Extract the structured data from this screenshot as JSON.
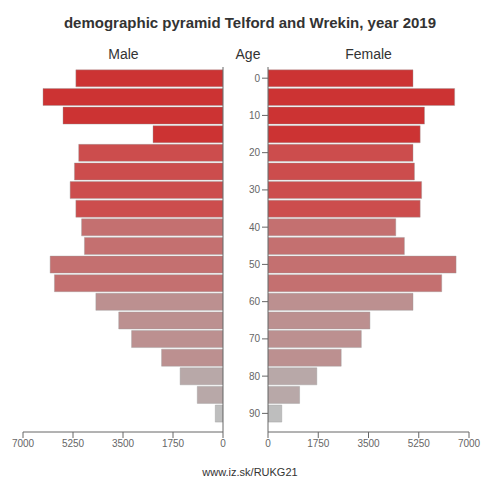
{
  "chart_data": {
    "type": "bar",
    "orientation": "horizontal",
    "title": "demographic pyramid Telford and Wrekin, year 2019",
    "ylabel": "Age",
    "annotations": [
      "www.iz.sk/RUKG21"
    ],
    "categories": [
      0,
      5,
      10,
      15,
      20,
      25,
      30,
      35,
      40,
      45,
      50,
      55,
      60,
      65,
      70,
      75,
      80,
      85,
      90
    ],
    "ylim": [
      -3.0,
      95.0
    ],
    "yticks": [
      0,
      10,
      20,
      30,
      40,
      50,
      60,
      70,
      80,
      90
    ],
    "xlim": [
      0,
      7000
    ],
    "xticks": [
      0,
      1750,
      3500,
      5250,
      7000
    ],
    "grid": false,
    "series": [
      {
        "name": "Male",
        "colors": [
          "#cc3333",
          "#cc3333",
          "#cc3333",
          "#cc3333",
          "#cc4d4d",
          "#cc4d4d",
          "#cc4d4d",
          "#cc4d4d",
          "#c47070",
          "#c47070",
          "#c47070",
          "#c47070",
          "#bc9090",
          "#bc9090",
          "#bc9090",
          "#bc9090",
          "#b8a8a8",
          "#b8a8a8",
          "#bebebe"
        ],
        "values": [
          5150,
          6300,
          5600,
          2450,
          5050,
          5200,
          5350,
          5150,
          4950,
          4850,
          6050,
          5900,
          4450,
          3650,
          3200,
          2150,
          1500,
          900,
          270
        ]
      },
      {
        "name": "Female",
        "colors": [
          "#cc3333",
          "#cc3333",
          "#cc3333",
          "#cc3333",
          "#cc4d4d",
          "#cc4d4d",
          "#cc4d4d",
          "#cc4d4d",
          "#c47070",
          "#c47070",
          "#c47070",
          "#c47070",
          "#bc9090",
          "#bc9090",
          "#bc9090",
          "#bc9090",
          "#b8a8a8",
          "#b8a8a8",
          "#bebebe"
        ],
        "values": [
          5050,
          6500,
          5450,
          5300,
          5050,
          5100,
          5350,
          5300,
          4450,
          4750,
          6550,
          6050,
          5050,
          3550,
          3250,
          2550,
          1700,
          1100,
          480
        ]
      }
    ]
  }
}
